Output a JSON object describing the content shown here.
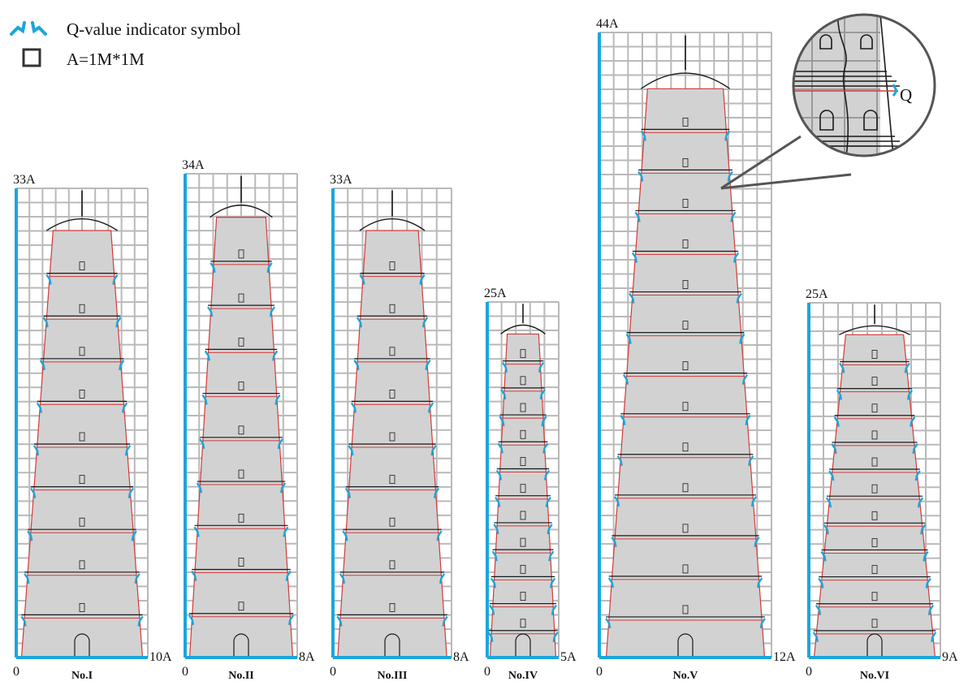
{
  "legend": {
    "q_symbol_label": "Q-value indicator symbol",
    "grid_label": "A=1M*1M"
  },
  "callout": {
    "q_label": "Q"
  },
  "colors": {
    "axis": "#1ba6db",
    "q_mark": "#1ba6db",
    "grid": "#b9b9b9",
    "body_fill": "#d2d2d2",
    "guide_line": "#d23a3a",
    "outline": "#1a1a1a"
  },
  "pagodas": [
    {
      "name": "No.I",
      "top_label": "33A",
      "origin_label": "0",
      "width_label": "10A",
      "height_units": 33,
      "width_units": 10,
      "tiers": 9
    },
    {
      "name": "No.II",
      "top_label": "34A",
      "origin_label": "0",
      "width_label": "8A",
      "height_units": 34,
      "width_units": 8,
      "tiers": 9
    },
    {
      "name": "No.III",
      "top_label": "33A",
      "origin_label": "0",
      "width_label": "8A",
      "height_units": 33,
      "width_units": 8,
      "tiers": 9
    },
    {
      "name": "No.IV",
      "top_label": "25A",
      "origin_label": "0",
      "width_label": "5A",
      "height_units": 25,
      "width_units": 5,
      "tiers": 11
    },
    {
      "name": "No.V",
      "top_label": "44A",
      "origin_label": "0",
      "width_label": "12A",
      "height_units": 44,
      "width_units": 12,
      "tiers": 13
    },
    {
      "name": "No.VI",
      "top_label": "25A",
      "origin_label": "0",
      "width_label": "9A",
      "height_units": 25,
      "width_units": 9,
      "tiers": 11
    }
  ]
}
